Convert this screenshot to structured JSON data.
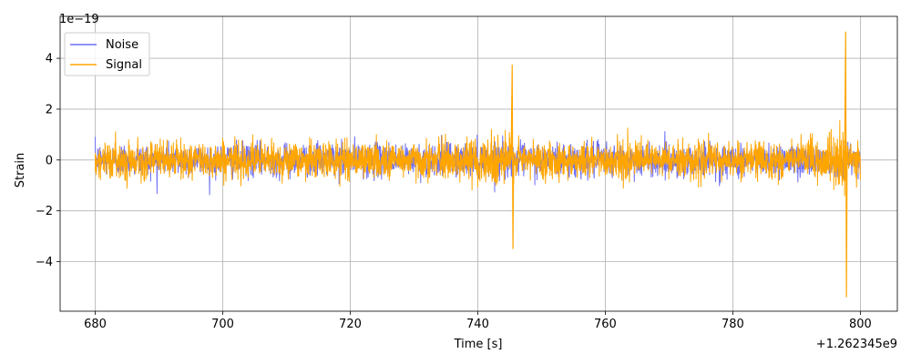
{
  "chart_data": {
    "type": "line",
    "xlabel": "Time [s]",
    "ylabel": "Strain",
    "x_offset_label": "+1.262345e9",
    "y_multiplier_label": "1e−19",
    "xlim": [
      674.5,
      805.8
    ],
    "ylim": [
      -5.95,
      5.65
    ],
    "x_ticks": [
      680,
      700,
      720,
      740,
      760,
      780,
      800
    ],
    "x_tick_labels": [
      "680",
      "700",
      "720",
      "740",
      "760",
      "780",
      "800"
    ],
    "y_ticks": [
      -4,
      -2,
      0,
      2,
      4
    ],
    "y_tick_labels": [
      "−4",
      "−2",
      "0",
      "2",
      "4"
    ],
    "grid": true,
    "legend_position": "top-left",
    "series": [
      {
        "name": "Noise",
        "color": "#6f6ff5",
        "x_range": [
          680,
          800
        ],
        "amplitude_rms": 0.33,
        "description_points": []
      },
      {
        "name": "Signal",
        "color": "#ffa500",
        "x_range": [
          680,
          800
        ],
        "amplitude_rms": 0.35,
        "events": [
          {
            "time": 745.4,
            "peak_high": 3.75,
            "peak_low": -3.5
          },
          {
            "time": 797.7,
            "peak_high": 5.05,
            "peak_low": -5.4
          }
        ]
      }
    ]
  }
}
